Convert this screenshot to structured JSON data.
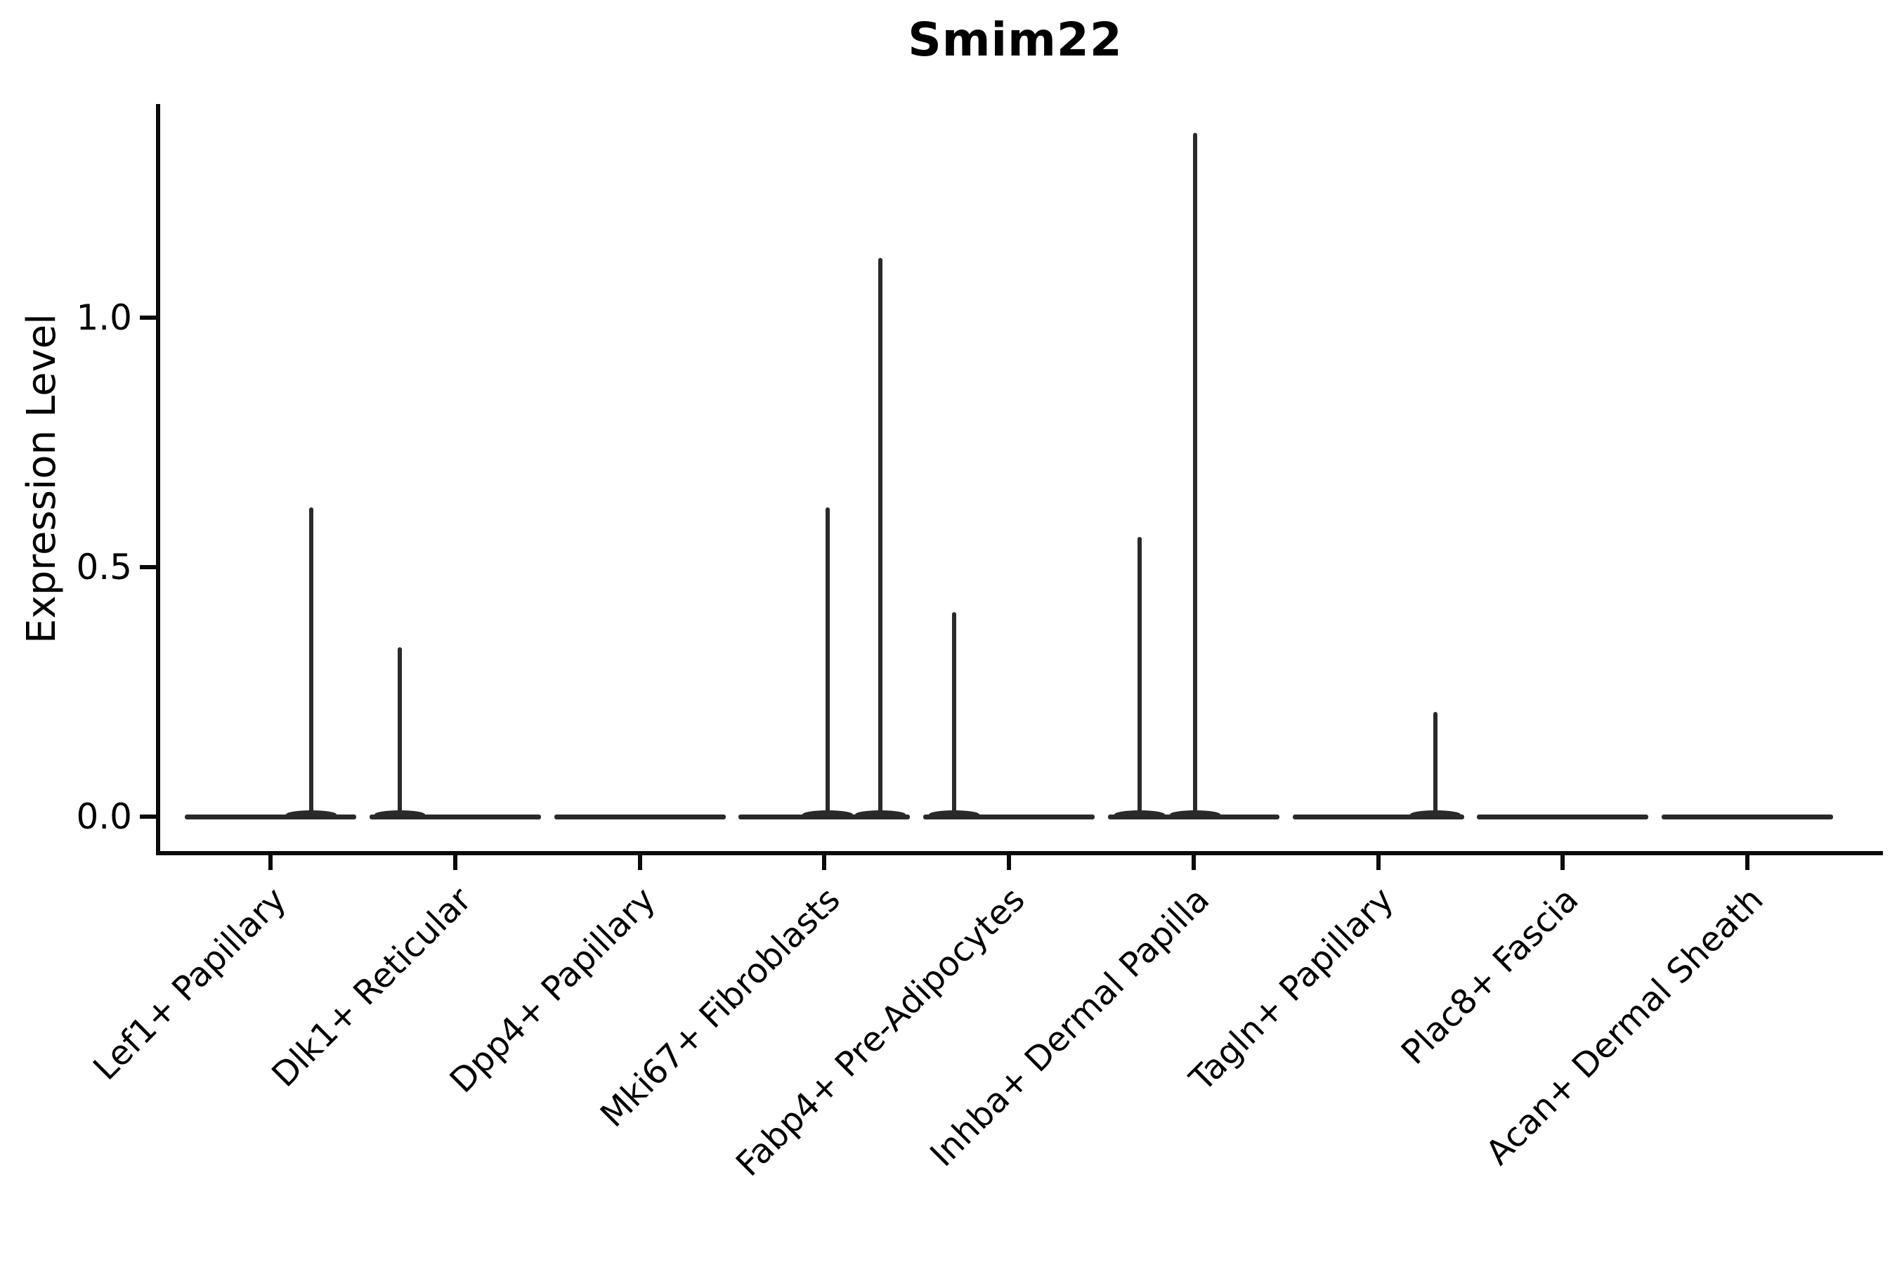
{
  "title": "Smim22",
  "axes": {
    "ylabel": "Expression Level",
    "ytick_labels": [
      "0.0",
      "0.5",
      "1.0"
    ]
  },
  "colors": {
    "background": "#ffffff",
    "axis": "#0a0a0a",
    "text": "#000000",
    "violin_ink": "#2a2a2a"
  },
  "chart_data": {
    "type": "violin",
    "title": "Smim22",
    "xlabel": "",
    "ylabel": "Expression Level",
    "ylim": [
      -0.07,
      1.43
    ],
    "yticks": [
      0.0,
      0.5,
      1.0
    ],
    "grid": false,
    "legend": null,
    "categories": [
      "Lef1+ Papillary",
      "Dlk1+ Reticular",
      "Dpp4+ Papillary",
      "Mki67+ Fibroblasts",
      "Fabp4+ Pre-Adipocytes",
      "Inhba+ Dermal Papilla",
      "Tagln+ Papillary",
      "Plac8+ Fascia",
      "Acan+ Dermal Sheath"
    ],
    "violins": [
      {
        "category": "Lef1+ Papillary",
        "baseline_value": 0.0,
        "max_value": 0.62,
        "spikes": [
          {
            "value": 0.62,
            "dx": 58
          }
        ]
      },
      {
        "category": "Dlk1+ Reticular",
        "baseline_value": 0.0,
        "max_value": 0.34,
        "spikes": [
          {
            "value": 0.34,
            "dx": -79
          }
        ]
      },
      {
        "category": "Dpp4+ Papillary",
        "baseline_value": 0.0,
        "max_value": 0.0,
        "spikes": []
      },
      {
        "category": "Mki67+ Fibroblasts",
        "baseline_value": 0.0,
        "max_value": 1.12,
        "spikes": [
          {
            "value": 0.62,
            "dx": 5
          },
          {
            "value": 1.12,
            "dx": 80
          }
        ]
      },
      {
        "category": "Fabp4+ Pre-Adipocytes",
        "baseline_value": 0.0,
        "max_value": 0.41,
        "spikes": [
          {
            "value": 0.41,
            "dx": -78
          }
        ]
      },
      {
        "category": "Inhba+ Dermal Papilla",
        "baseline_value": 0.0,
        "max_value": 1.37,
        "spikes": [
          {
            "value": 0.56,
            "dx": -77
          },
          {
            "value": 1.37,
            "dx": 2
          }
        ]
      },
      {
        "category": "Tagln+ Papillary",
        "baseline_value": 0.0,
        "max_value": 0.21,
        "spikes": [
          {
            "value": 0.21,
            "dx": 81
          }
        ]
      },
      {
        "category": "Plac8+ Fascia",
        "baseline_value": 0.0,
        "max_value": 0.0,
        "spikes": []
      },
      {
        "category": "Acan+ Dermal Sheath",
        "baseline_value": 0.0,
        "max_value": 0.0,
        "spikes": []
      }
    ]
  }
}
